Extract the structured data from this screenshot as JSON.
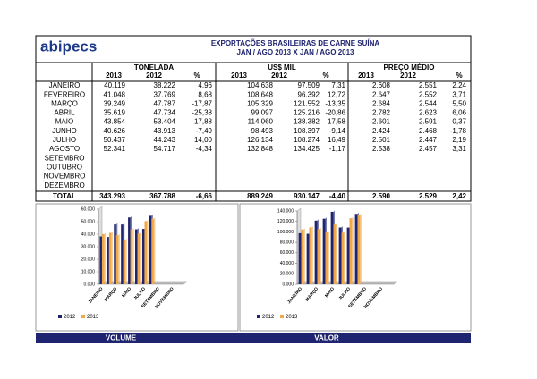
{
  "header": {
    "logo": "abipecs",
    "title": "EXPORTAÇÕES BRASILEIRAS DE CARNE SUÍNA",
    "subtitle": "JAN / AGO 2013 X JAN / AGO 2013"
  },
  "table": {
    "groups": [
      "TONELADA",
      "US$ MIL",
      "PREÇO MÉDIO"
    ],
    "columns": [
      "2013",
      "2012",
      "%",
      "2013",
      "2012",
      "%",
      "2013",
      "2012",
      "%"
    ],
    "rows": [
      [
        "JANEIRO",
        "40.119",
        "38.222",
        "4,96",
        "104.638",
        "97.509",
        "7,31",
        "2.608",
        "2.551",
        "2,24"
      ],
      [
        "FEVEREIRO",
        "41.048",
        "37.769",
        "8,68",
        "108.648",
        "96.392",
        "12,72",
        "2.647",
        "2.552",
        "3,71"
      ],
      [
        "MARÇO",
        "39.249",
        "47.787",
        "-17,87",
        "105.329",
        "121.552",
        "-13,35",
        "2.684",
        "2.544",
        "5,50"
      ],
      [
        "ABRIL",
        "35.619",
        "47.734",
        "-25,38",
        "99.097",
        "125.216",
        "-20,86",
        "2.782",
        "2.623",
        "6,06"
      ],
      [
        "MAIO",
        "43.854",
        "53.404",
        "-17,88",
        "114.060",
        "138.382",
        "-17,58",
        "2.601",
        "2.591",
        "0,37"
      ],
      [
        "JUNHO",
        "40.626",
        "43.913",
        "-7,49",
        "98.493",
        "108.397",
        "-9,14",
        "2.424",
        "2.468",
        "-1,78"
      ],
      [
        "JULHO",
        "50.437",
        "44.243",
        "14,00",
        "126.134",
        "108.274",
        "16,49",
        "2.501",
        "2.447",
        "2,19"
      ],
      [
        "AGOSTO",
        "52.341",
        "54.717",
        "-4,34",
        "132.848",
        "134.425",
        "-1,17",
        "2.538",
        "2.457",
        "3,31"
      ],
      [
        "SETEMBRO"
      ],
      [
        "OUTUBRO"
      ],
      [
        "NOVEMBRO"
      ],
      [
        "DEZEMBRO"
      ]
    ],
    "total": [
      "TOTAL",
      "343.293",
      "367.788",
      "-6,66",
      "889.249",
      "930.147",
      "-4,40",
      "2.590",
      "2.529",
      "2,42"
    ]
  },
  "charts": [
    {
      "type": "bar",
      "label": "VOLUME",
      "categories": [
        "JANEIRO",
        null,
        "MARÇO",
        null,
        "MAIO",
        null,
        "JULHO",
        null,
        "SETEMBRO",
        null,
        "NOVEMBRO",
        null
      ],
      "series": [
        {
          "name": "2012",
          "color": "#1f2470",
          "values": [
            38222,
            37769,
            47787,
            47734,
            53404,
            43913,
            44243,
            54717,
            null,
            null,
            null,
            null
          ]
        },
        {
          "name": "2013",
          "color": "#f0a848",
          "values": [
            40119,
            41048,
            39249,
            35619,
            43854,
            40626,
            50437,
            52341,
            null,
            null,
            null,
            null
          ]
        }
      ],
      "ylim": [
        0,
        60000
      ],
      "yticks": [
        {
          "value": 0,
          "label": "0.000"
        },
        {
          "value": 10000,
          "label": "10.000"
        },
        {
          "value": 20000,
          "label": "20.000"
        },
        {
          "value": 30000,
          "label": "30.000"
        },
        {
          "value": 40000,
          "label": "40.000"
        },
        {
          "value": 50000,
          "label": "50.000"
        },
        {
          "value": 60000,
          "label": "60.000"
        }
      ]
    },
    {
      "type": "bar",
      "label": "VALOR",
      "categories": [
        "JANEIRO",
        null,
        "MARÇO",
        null,
        "MAIO",
        null,
        "JULHO",
        null,
        "SETEMBRO",
        null,
        "NOVEMBRO",
        null
      ],
      "series": [
        {
          "name": "2012",
          "color": "#1f2470",
          "values": [
            97509,
            96392,
            121552,
            125216,
            138382,
            108397,
            108274,
            134425,
            null,
            null,
            null,
            null
          ]
        },
        {
          "name": "2013",
          "color": "#f0a848",
          "values": [
            104638,
            108648,
            105329,
            99097,
            114060,
            98493,
            126134,
            132848,
            null,
            null,
            null,
            null
          ]
        }
      ],
      "ylim": [
        0,
        140000
      ],
      "yticks": [
        {
          "value": 0,
          "label": "0.000"
        },
        {
          "value": 20000,
          "label": "20.000"
        },
        {
          "value": 40000,
          "label": "40.000"
        },
        {
          "value": 60000,
          "label": "60.000"
        },
        {
          "value": 80000,
          "label": "80.000"
        },
        {
          "value": 100000,
          "label": "100.000"
        },
        {
          "value": 120000,
          "label": "120.000"
        },
        {
          "value": 140000,
          "label": "140.000"
        }
      ]
    }
  ]
}
